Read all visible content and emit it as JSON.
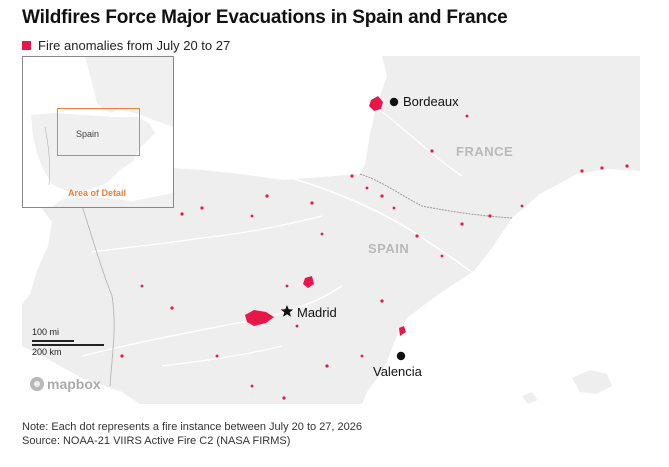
{
  "title": "Wildfires Force Major Evacuations in Spain and France",
  "legend": {
    "label": "Fire anomalies from July 20 to 27",
    "color": "#e8174a"
  },
  "map": {
    "cities": [
      {
        "id": "bordeaux",
        "name": "Bordeaux",
        "marker": "dot"
      },
      {
        "id": "madrid",
        "name": "Madrid",
        "marker": "star"
      },
      {
        "id": "valencia",
        "name": "Valencia",
        "marker": "dot"
      }
    ],
    "countries": [
      {
        "id": "france",
        "name": "FRANCE"
      },
      {
        "id": "spain",
        "name": "SPAIN"
      }
    ],
    "inset": {
      "country_label": "Spain",
      "caption": "Area of Detail",
      "highlight_color": "#f07d3a"
    },
    "scale": {
      "miles": "100 mi",
      "km": "200 km"
    },
    "attribution": "mapbox"
  },
  "footer": {
    "note": "Note: Each dot represents a fire instance between July 20 to 27, 2026",
    "source": "Source: NOAA-21 VIIRS Active Fire C2 (NASA FIRMS)"
  }
}
